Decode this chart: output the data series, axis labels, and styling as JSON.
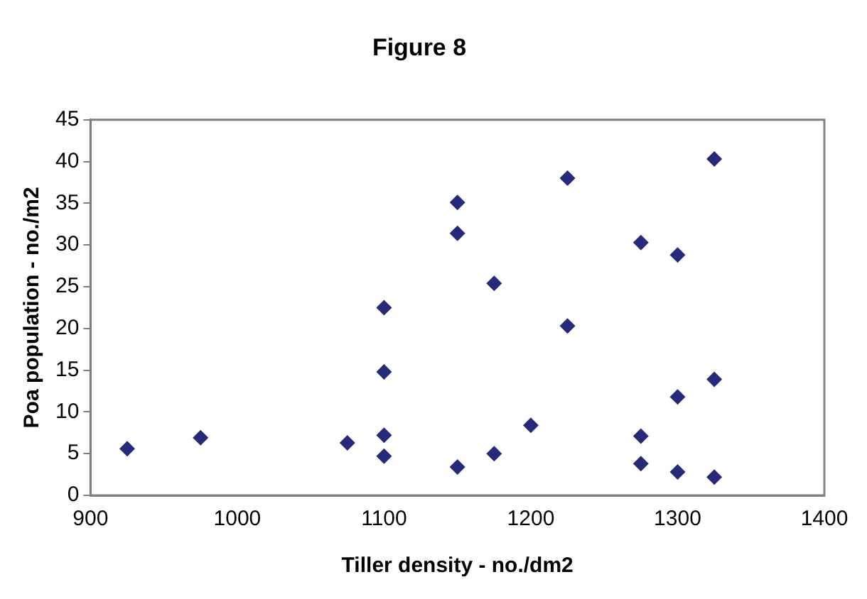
{
  "chart_data": {
    "type": "scatter",
    "title": "Figure 8",
    "xlabel": "Tiller density - no./dm2",
    "ylabel": "Poa population - no./m2",
    "x": [
      925,
      975,
      1075,
      1100,
      1100,
      1100,
      1100,
      1150,
      1150,
      1150,
      1175,
      1175,
      1200,
      1225,
      1225,
      1275,
      1275,
      1275,
      1300,
      1300,
      1300,
      1325,
      1325,
      1325
    ],
    "series": [
      {
        "color": "#262a78",
        "values": [
          5.6,
          6.9,
          6.3,
          22.5,
          14.8,
          7.2,
          4.7,
          35.1,
          31.4,
          3.4,
          25.4,
          5.0,
          8.4,
          38.0,
          20.3,
          30.3,
          7.1,
          3.8,
          28.8,
          11.8,
          2.8,
          40.3,
          13.9,
          2.2
        ]
      }
    ],
    "xlim": [
      900,
      1400
    ],
    "xticks": [
      900,
      1000,
      1100,
      1200,
      1300,
      1400
    ],
    "ylim": [
      0,
      45
    ],
    "yticks": [
      0,
      5,
      10,
      15,
      20,
      25,
      30,
      35,
      40,
      45
    ],
    "grid": false,
    "legend": false,
    "marker": "diamond"
  }
}
